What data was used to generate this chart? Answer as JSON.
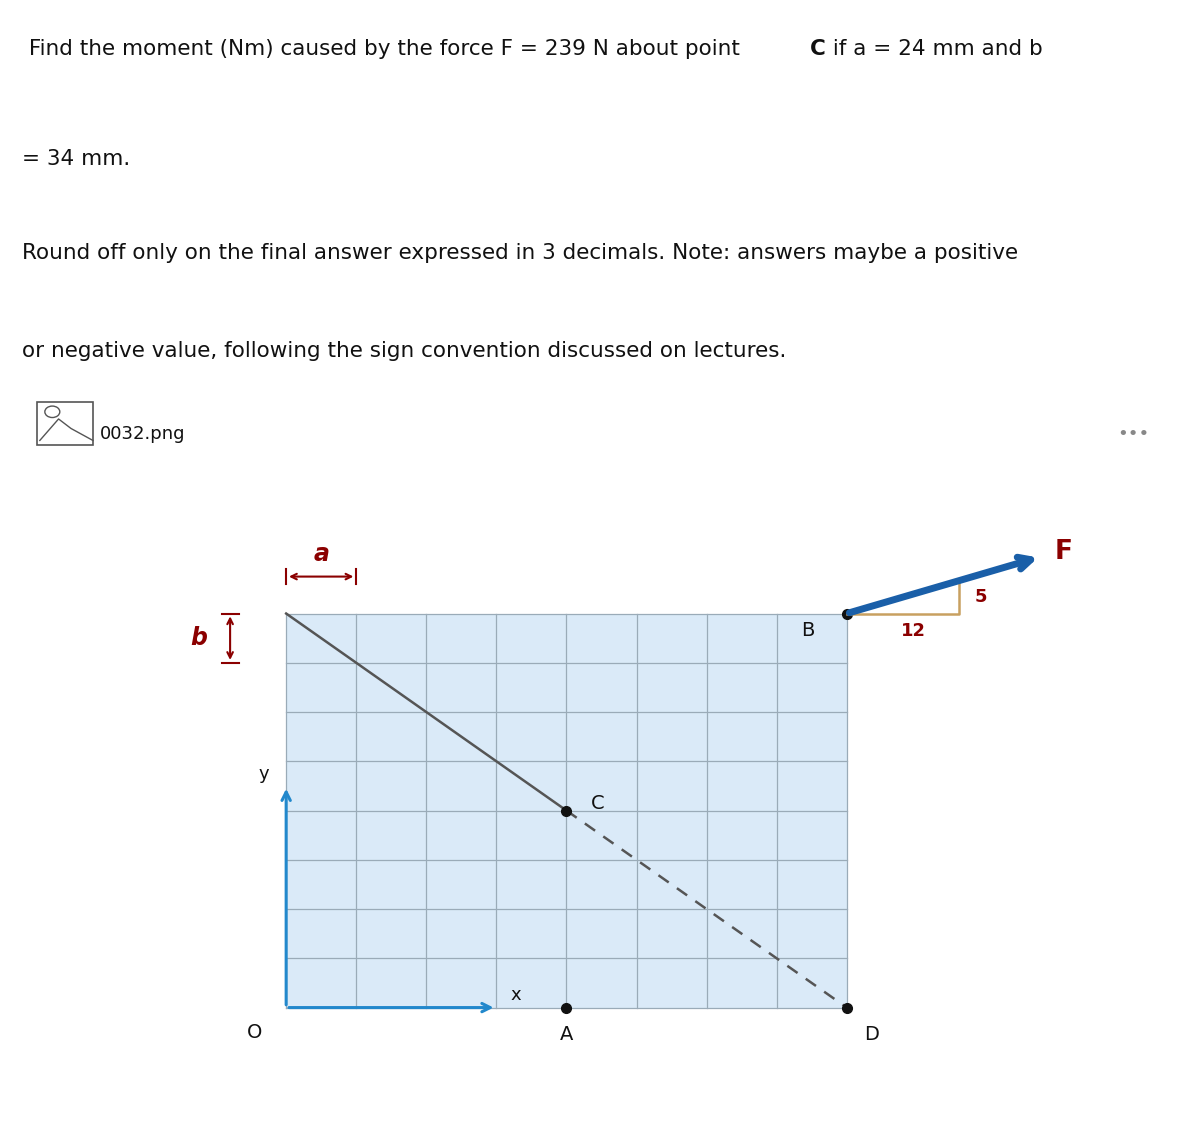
{
  "line1_pre": " Find the moment (Nm) caused by the force F = 239 N about point",
  "line1_C": "C",
  "line1_post": " if a = 24 mm and b",
  "line2": "= 34 mm.",
  "line3": "Round off only on the final answer expressed in 3 decimals. Note: answers maybe a positive",
  "line4": "or negative value, following the sign convention discussed on lectures.",
  "file_label": "0032.png",
  "bg_page": "#f2f2f2",
  "bg_white": "#ffffff",
  "bg_panel": "#e5e5e5",
  "bg_grid": "#daeaf8",
  "grid_line_color": "#9aabb8",
  "dim_color": "#8b0000",
  "arrow_color": "#1a5fa8",
  "axis_color": "#2288cc",
  "point_color": "#111111",
  "text_color": "#111111",
  "dashed_color": "#555555",
  "tan_color": "#c8a060",
  "dots_color": "#888888",
  "grid_cols": 8,
  "grid_rows": 8
}
